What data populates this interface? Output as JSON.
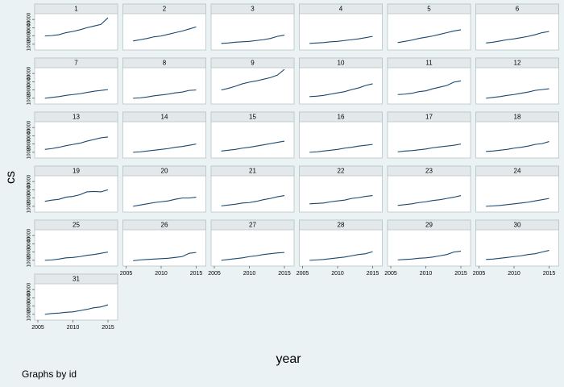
{
  "chart_data": [
    {
      "type": "line",
      "title": "1",
      "x": [
        2006,
        2007,
        2008,
        2009,
        2010,
        2011,
        2012,
        2013,
        2014,
        2015
      ],
      "values": [
        20000,
        20500,
        21500,
        24000,
        25500,
        27500,
        30000,
        32000,
        34000,
        42000
      ],
      "color": "#1a476f",
      "xlim": [
        2005,
        2015
      ],
      "ylim": [
        5000,
        45000
      ],
      "yticks": [
        10000,
        20000,
        30000,
        40000
      ]
    },
    {
      "type": "line",
      "title": "2",
      "x": [
        2006,
        2007,
        2008,
        2009,
        2010,
        2011,
        2012,
        2013,
        2014,
        2015
      ],
      "values": [
        14000,
        15500,
        17000,
        19000,
        20000,
        22000,
        24000,
        26000,
        28500,
        31000
      ],
      "color": "#1a476f",
      "xlim": [
        2005,
        2015
      ],
      "ylim": [
        5000,
        45000
      ]
    },
    {
      "type": "line",
      "title": "3",
      "x": [
        2006,
        2007,
        2008,
        2009,
        2010,
        2011,
        2012,
        2013,
        2014,
        2015
      ],
      "values": [
        11000,
        11500,
        12500,
        13000,
        13500,
        14500,
        15500,
        17000,
        19500,
        21000
      ],
      "color": "#1a476f",
      "xlim": [
        2005,
        2015
      ],
      "ylim": [
        5000,
        45000
      ]
    },
    {
      "type": "line",
      "title": "4",
      "x": [
        2006,
        2007,
        2008,
        2009,
        2010,
        2011,
        2012,
        2013,
        2014,
        2015
      ],
      "values": [
        11000,
        11500,
        12000,
        13000,
        13500,
        14500,
        15500,
        16500,
        18000,
        19500
      ],
      "color": "#1a476f",
      "xlim": [
        2005,
        2015
      ],
      "ylim": [
        5000,
        45000
      ]
    },
    {
      "type": "line",
      "title": "5",
      "x": [
        2006,
        2007,
        2008,
        2009,
        2010,
        2011,
        2012,
        2013,
        2014,
        2015
      ],
      "values": [
        12000,
        13500,
        15000,
        17000,
        18500,
        20000,
        22000,
        24000,
        26000,
        27500
      ],
      "color": "#1a476f",
      "xlim": [
        2005,
        2015
      ],
      "ylim": [
        5000,
        45000
      ]
    },
    {
      "type": "line",
      "title": "6",
      "x": [
        2006,
        2007,
        2008,
        2009,
        2010,
        2011,
        2012,
        2013,
        2014,
        2015
      ],
      "values": [
        11500,
        12500,
        14000,
        15500,
        16500,
        18000,
        19500,
        21500,
        24000,
        25500
      ],
      "color": "#1a476f",
      "xlim": [
        2005,
        2015
      ],
      "ylim": [
        5000,
        45000
      ]
    },
    {
      "type": "line",
      "title": "7",
      "x": [
        2006,
        2007,
        2008,
        2009,
        2010,
        2011,
        2012,
        2013,
        2014,
        2015
      ],
      "values": [
        10000,
        11000,
        12000,
        13500,
        14500,
        15500,
        17000,
        18500,
        19500,
        20500
      ],
      "color": "#1a476f",
      "xlim": [
        2005,
        2015
      ],
      "ylim": [
        5000,
        45000
      ],
      "yticks": [
        10000,
        20000,
        30000,
        40000
      ]
    },
    {
      "type": "line",
      "title": "8",
      "x": [
        2006,
        2007,
        2008,
        2009,
        2010,
        2011,
        2012,
        2013,
        2014,
        2015
      ],
      "values": [
        10000,
        10500,
        11500,
        13000,
        14000,
        15000,
        16500,
        17500,
        19500,
        20000
      ],
      "color": "#1a476f",
      "xlim": [
        2005,
        2015
      ],
      "ylim": [
        5000,
        45000
      ]
    },
    {
      "type": "line",
      "title": "9",
      "x": [
        2006,
        2007,
        2008,
        2009,
        2010,
        2011,
        2012,
        2013,
        2014,
        2015
      ],
      "values": [
        20000,
        22000,
        24500,
        27500,
        29500,
        31000,
        33000,
        35000,
        38000,
        45000
      ],
      "color": "#1a476f",
      "xlim": [
        2005,
        2015
      ],
      "ylim": [
        5000,
        45000
      ]
    },
    {
      "type": "line",
      "title": "10",
      "x": [
        2006,
        2007,
        2008,
        2009,
        2010,
        2011,
        2012,
        2013,
        2014,
        2015
      ],
      "values": [
        12000,
        12500,
        13500,
        15000,
        16500,
        18000,
        20500,
        22500,
        25500,
        27500
      ],
      "color": "#1a476f",
      "xlim": [
        2005,
        2015
      ],
      "ylim": [
        5000,
        45000
      ]
    },
    {
      "type": "line",
      "title": "11",
      "x": [
        2006,
        2007,
        2008,
        2009,
        2010,
        2011,
        2012,
        2013,
        2014,
        2015
      ],
      "values": [
        14500,
        15000,
        16000,
        18000,
        19000,
        21500,
        23500,
        25500,
        29500,
        31000
      ],
      "color": "#1a476f",
      "xlim": [
        2005,
        2015
      ],
      "ylim": [
        5000,
        45000
      ]
    },
    {
      "type": "line",
      "title": "12",
      "x": [
        2006,
        2007,
        2008,
        2009,
        2010,
        2011,
        2012,
        2013,
        2014,
        2015
      ],
      "values": [
        10000,
        11000,
        12000,
        13500,
        14500,
        16000,
        17500,
        19500,
        20500,
        21500
      ],
      "color": "#1a476f",
      "xlim": [
        2005,
        2015
      ],
      "ylim": [
        5000,
        45000
      ]
    },
    {
      "type": "line",
      "title": "13",
      "x": [
        2006,
        2007,
        2008,
        2009,
        2010,
        2011,
        2012,
        2013,
        2014,
        2015
      ],
      "values": [
        13500,
        14500,
        16000,
        18000,
        19500,
        21000,
        23500,
        25500,
        27500,
        28500
      ],
      "color": "#1a476f",
      "xlim": [
        2005,
        2015
      ],
      "ylim": [
        5000,
        45000
      ],
      "yticks": [
        10000,
        20000,
        30000,
        40000
      ]
    },
    {
      "type": "line",
      "title": "14",
      "x": [
        2006,
        2007,
        2008,
        2009,
        2010,
        2011,
        2012,
        2013,
        2014,
        2015
      ],
      "values": [
        10000,
        10500,
        11500,
        12500,
        13500,
        14500,
        16000,
        17000,
        18500,
        20000
      ],
      "color": "#1a476f",
      "xlim": [
        2005,
        2015
      ],
      "ylim": [
        5000,
        45000
      ]
    },
    {
      "type": "line",
      "title": "15",
      "x": [
        2006,
        2007,
        2008,
        2009,
        2010,
        2011,
        2012,
        2013,
        2014,
        2015
      ],
      "values": [
        11500,
        12500,
        13500,
        15000,
        16000,
        17500,
        19000,
        20500,
        22000,
        23500
      ],
      "color": "#1a476f",
      "xlim": [
        2005,
        2015
      ],
      "ylim": [
        5000,
        45000
      ]
    },
    {
      "type": "line",
      "title": "16",
      "x": [
        2006,
        2007,
        2008,
        2009,
        2010,
        2011,
        2012,
        2013,
        2014,
        2015
      ],
      "values": [
        10000,
        10500,
        11500,
        12500,
        13500,
        15000,
        16000,
        17500,
        18500,
        19500
      ],
      "color": "#1a476f",
      "xlim": [
        2005,
        2015
      ],
      "ylim": [
        5000,
        45000
      ]
    },
    {
      "type": "line",
      "title": "17",
      "x": [
        2006,
        2007,
        2008,
        2009,
        2010,
        2011,
        2012,
        2013,
        2014,
        2015
      ],
      "values": [
        10500,
        11500,
        12000,
        13000,
        14000,
        15500,
        16500,
        17500,
        18500,
        20000
      ],
      "color": "#1a476f",
      "xlim": [
        2005,
        2015
      ],
      "ylim": [
        5000,
        45000
      ]
    },
    {
      "type": "line",
      "title": "18",
      "x": [
        2006,
        2007,
        2008,
        2009,
        2010,
        2011,
        2012,
        2013,
        2014,
        2015
      ],
      "values": [
        11000,
        11500,
        12500,
        13500,
        15000,
        16000,
        17500,
        19500,
        20500,
        23000
      ],
      "color": "#1a476f",
      "xlim": [
        2005,
        2015
      ],
      "ylim": [
        5000,
        45000
      ]
    },
    {
      "type": "line",
      "title": "19",
      "x": [
        2006,
        2007,
        2008,
        2009,
        2010,
        2011,
        2012,
        2013,
        2014,
        2015
      ],
      "values": [
        16000,
        17500,
        18500,
        21000,
        22000,
        24000,
        27500,
        28000,
        27500,
        30000
      ],
      "color": "#1a476f",
      "xlim": [
        2005,
        2015
      ],
      "ylim": [
        5000,
        45000
      ],
      "yticks": [
        10000,
        20000,
        30000,
        40000
      ]
    },
    {
      "type": "line",
      "title": "20",
      "x": [
        2006,
        2007,
        2008,
        2009,
        2010,
        2011,
        2012,
        2013,
        2014,
        2015
      ],
      "values": [
        10000,
        11500,
        13000,
        14500,
        15500,
        16500,
        18500,
        20000,
        20000,
        21000
      ],
      "color": "#1a476f",
      "xlim": [
        2005,
        2015
      ],
      "ylim": [
        5000,
        45000
      ]
    },
    {
      "type": "line",
      "title": "21",
      "x": [
        2006,
        2007,
        2008,
        2009,
        2010,
        2011,
        2012,
        2013,
        2014,
        2015
      ],
      "values": [
        10500,
        11500,
        12500,
        14000,
        14500,
        16000,
        18000,
        19500,
        21500,
        23000
      ],
      "color": "#1a476f",
      "xlim": [
        2005,
        2015
      ],
      "ylim": [
        5000,
        45000
      ]
    },
    {
      "type": "line",
      "title": "22",
      "x": [
        2006,
        2007,
        2008,
        2009,
        2010,
        2011,
        2012,
        2013,
        2014,
        2015
      ],
      "values": [
        13000,
        13500,
        14000,
        15500,
        16500,
        17500,
        19500,
        20500,
        22000,
        23000
      ],
      "color": "#1a476f",
      "xlim": [
        2005,
        2015
      ],
      "ylim": [
        5000,
        45000
      ]
    },
    {
      "type": "line",
      "title": "23",
      "x": [
        2006,
        2007,
        2008,
        2009,
        2010,
        2011,
        2012,
        2013,
        2014,
        2015
      ],
      "values": [
        11000,
        12000,
        13000,
        14500,
        15500,
        17000,
        18000,
        19500,
        21000,
        23000
      ],
      "color": "#1a476f",
      "xlim": [
        2005,
        2015
      ],
      "ylim": [
        5000,
        45000
      ]
    },
    {
      "type": "line",
      "title": "24",
      "x": [
        2006,
        2007,
        2008,
        2009,
        2010,
        2011,
        2012,
        2013,
        2014,
        2015
      ],
      "values": [
        10000,
        10500,
        11000,
        12000,
        13000,
        14000,
        15000,
        16500,
        18000,
        19500
      ],
      "color": "#1a476f",
      "xlim": [
        2005,
        2015
      ],
      "ylim": [
        5000,
        45000
      ]
    },
    {
      "type": "line",
      "title": "25",
      "x": [
        2006,
        2007,
        2008,
        2009,
        2010,
        2011,
        2012,
        2013,
        2014,
        2015
      ],
      "values": [
        10000,
        10500,
        11500,
        13000,
        13500,
        14500,
        16000,
        17000,
        18500,
        20000
      ],
      "color": "#1a476f",
      "xlim": [
        2005,
        2015
      ],
      "ylim": [
        5000,
        45000
      ],
      "yticks": [
        10000,
        20000,
        30000,
        40000
      ]
    },
    {
      "type": "line",
      "title": "26",
      "x": [
        2006,
        2007,
        2008,
        2009,
        2010,
        2011,
        2012,
        2013,
        2014,
        2015
      ],
      "values": [
        9500,
        10500,
        11000,
        11500,
        12000,
        12500,
        13500,
        14500,
        18500,
        19500
      ],
      "color": "#1a476f",
      "xlim": [
        2005,
        2015
      ],
      "ylim": [
        5000,
        45000
      ],
      "xticks": [
        2005,
        2010,
        2015
      ]
    },
    {
      "type": "line",
      "title": "27",
      "x": [
        2006,
        2007,
        2008,
        2009,
        2010,
        2011,
        2012,
        2013,
        2014,
        2015
      ],
      "values": [
        10000,
        11000,
        12000,
        13000,
        14500,
        15500,
        17000,
        18000,
        19000,
        19500
      ],
      "color": "#1a476f",
      "xlim": [
        2005,
        2015
      ],
      "ylim": [
        5000,
        45000
      ],
      "xticks": [
        2005,
        2010,
        2015
      ]
    },
    {
      "type": "line",
      "title": "28",
      "x": [
        2006,
        2007,
        2008,
        2009,
        2010,
        2011,
        2012,
        2013,
        2014,
        2015
      ],
      "values": [
        10000,
        10500,
        11000,
        12000,
        13000,
        14000,
        15500,
        17000,
        18000,
        20500
      ],
      "color": "#1a476f",
      "xlim": [
        2005,
        2015
      ],
      "ylim": [
        5000,
        45000
      ],
      "xticks": [
        2005,
        2010,
        2015
      ]
    },
    {
      "type": "line",
      "title": "29",
      "x": [
        2006,
        2007,
        2008,
        2009,
        2010,
        2011,
        2012,
        2013,
        2014,
        2015
      ],
      "values": [
        10500,
        11000,
        11500,
        12500,
        13000,
        14000,
        15500,
        17000,
        20000,
        21000
      ],
      "color": "#1a476f",
      "xlim": [
        2005,
        2015
      ],
      "ylim": [
        5000,
        45000
      ],
      "xticks": [
        2005,
        2010,
        2015
      ]
    },
    {
      "type": "line",
      "title": "30",
      "x": [
        2006,
        2007,
        2008,
        2009,
        2010,
        2011,
        2012,
        2013,
        2014,
        2015
      ],
      "values": [
        11000,
        11500,
        12500,
        13500,
        14500,
        15500,
        17000,
        18000,
        20000,
        22000
      ],
      "color": "#1a476f",
      "xlim": [
        2005,
        2015
      ],
      "ylim": [
        5000,
        45000
      ],
      "xticks": [
        2005,
        2010,
        2015
      ]
    },
    {
      "type": "line",
      "title": "31",
      "x": [
        2006,
        2007,
        2008,
        2009,
        2010,
        2011,
        2012,
        2013,
        2014,
        2015
      ],
      "values": [
        10000,
        11000,
        11500,
        12500,
        13000,
        14500,
        16000,
        18000,
        19000,
        21500
      ],
      "color": "#1a476f",
      "xlim": [
        2005,
        2015
      ],
      "ylim": [
        5000,
        45000
      ],
      "yticks": [
        10000,
        20000,
        30000,
        40000
      ],
      "xticks": [
        2005,
        2010,
        2015
      ]
    }
  ],
  "y_label": "cs",
  "x_label": "year",
  "note": "Graphs by id"
}
